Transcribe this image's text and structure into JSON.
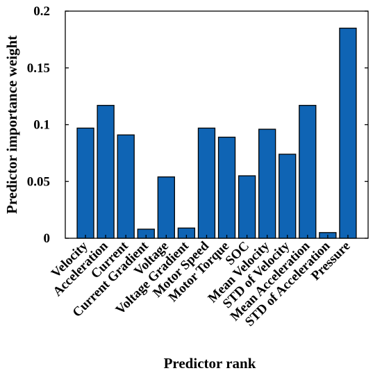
{
  "chart_data": {
    "type": "bar",
    "categories": [
      "Velocity",
      "Acceleration",
      "Current",
      "Current Gradient",
      "Voltage",
      "Voltage Gradient",
      "Motor Speed",
      "Motor Torque",
      "SOC",
      "Mean Velocity",
      "STD of Velocity",
      "Mean Acceleration",
      "STD of Acceleration",
      "Pressure"
    ],
    "values": [
      0.097,
      0.117,
      0.091,
      0.008,
      0.054,
      0.009,
      0.097,
      0.089,
      0.055,
      0.096,
      0.074,
      0.117,
      0.005,
      0.185
    ],
    "xlabel": "Predictor rank",
    "ylabel": "Predictor importance weight",
    "ylim": [
      0,
      0.2
    ],
    "yticks": [
      0,
      0.05,
      0.1,
      0.15,
      0.2
    ],
    "ytick_labels": [
      "0",
      "0.05",
      "0.1",
      "0.15",
      "0.2"
    ],
    "bar_color": "#0F64B4",
    "grid": false,
    "legend": "none"
  }
}
